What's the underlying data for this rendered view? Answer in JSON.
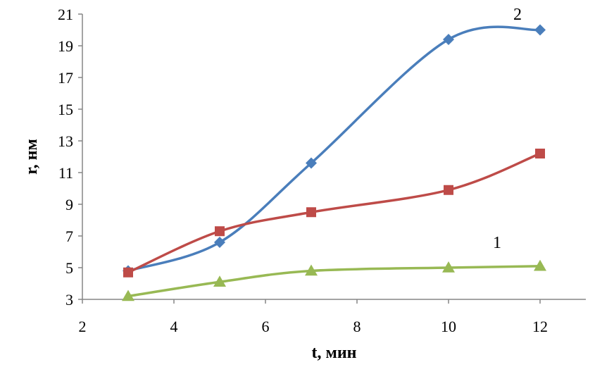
{
  "chart_data": {
    "type": "line",
    "xlabel": "t, мин",
    "ylabel": "r, нм",
    "xlim": [
      2,
      13
    ],
    "ylim": [
      3,
      21
    ],
    "xticks": [
      2,
      4,
      6,
      8,
      10,
      12
    ],
    "yticks": [
      3,
      5,
      7,
      9,
      11,
      13,
      15,
      17,
      19,
      21
    ],
    "grid": false,
    "legend": "none",
    "smooth": true,
    "series": [
      {
        "label": "2",
        "color": "#4A7EBB",
        "marker": "diamond",
        "x": [
          3,
          5,
          7,
          10,
          12
        ],
        "y": [
          4.8,
          6.6,
          11.6,
          19.4,
          20.0
        ]
      },
      {
        "label": "",
        "color": "#BE4B48",
        "marker": "square",
        "x": [
          3,
          5,
          7,
          10,
          12
        ],
        "y": [
          4.7,
          7.3,
          8.5,
          9.9,
          12.2
        ]
      },
      {
        "label": "1",
        "color": "#98B954",
        "marker": "triangle",
        "x": [
          3,
          5,
          7,
          10,
          12
        ],
        "y": [
          3.2,
          4.1,
          4.8,
          5.0,
          5.1
        ]
      }
    ]
  }
}
